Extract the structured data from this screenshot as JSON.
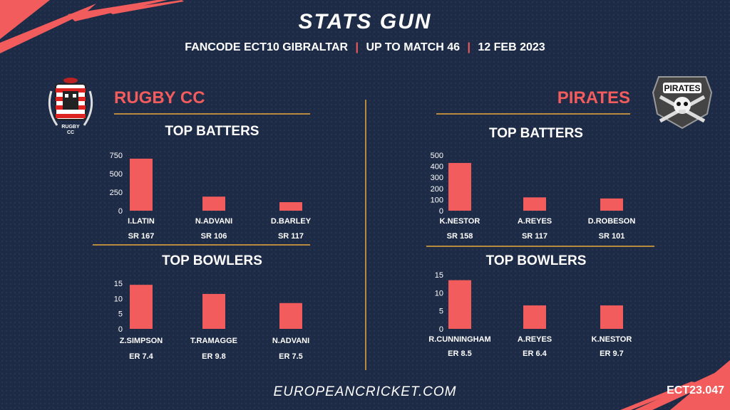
{
  "title": "STATS GUN",
  "subtitle": {
    "part1": "FANCODE ECT10 GIBRALTAR",
    "part2": "UP TO MATCH  46",
    "part3": "12 FEB 2023",
    "separator": "|"
  },
  "teams": {
    "left": {
      "name": "RUGBY CC",
      "logo_text_1": "RUGBY",
      "logo_text_2": "CC"
    },
    "right": {
      "name": "PIRATES",
      "logo_text": "PIRATES"
    }
  },
  "section_titles": {
    "batters": "TOP BATTERS",
    "bowlers": "TOP BOWLERS"
  },
  "footer": "EUROPEANCRICKET.COM",
  "code": "ECT23.047",
  "colors": {
    "accent": "#f25c5c",
    "gold": "#b88a3e",
    "background": "#1d2b46"
  },
  "chart_data": [
    {
      "id": "left-batters",
      "type": "bar",
      "title": "TOP BATTERS",
      "categories": [
        "I.LATIN",
        "N.ADVANI",
        "D.BARLEY"
      ],
      "values": [
        703,
        190,
        115
      ],
      "labels": [
        "SR 167",
        "SR 106",
        "SR 117"
      ],
      "yticks": [
        0,
        250,
        500,
        750
      ],
      "ylim": [
        0,
        750
      ]
    },
    {
      "id": "left-bowlers",
      "type": "bar",
      "title": "TOP BOWLERS",
      "categories": [
        "Z.SIMPSON",
        "T.RAMAGGE",
        "N.ADVANI"
      ],
      "values": [
        14.5,
        11.5,
        8.5
      ],
      "labels": [
        "ER 7.4",
        "ER 9.8",
        "ER 7.5"
      ],
      "yticks": [
        0,
        5,
        10,
        15
      ],
      "ylim": [
        0,
        15
      ]
    },
    {
      "id": "right-batters",
      "type": "bar",
      "title": "TOP BATTERS",
      "categories": [
        "K.NESTOR",
        "A.REYES",
        "D.ROBESON"
      ],
      "values": [
        430,
        120,
        110
      ],
      "labels": [
        "SR 158",
        "SR 117",
        "SR 101"
      ],
      "yticks": [
        0,
        100,
        200,
        300,
        400,
        500
      ],
      "ylim": [
        0,
        500
      ]
    },
    {
      "id": "right-bowlers",
      "type": "bar",
      "title": "TOP BOWLERS",
      "categories": [
        "R.CUNNINGHAM",
        "A.REYES",
        "K.NESTOR"
      ],
      "values": [
        13.5,
        6.5,
        6.5
      ],
      "labels": [
        "ER 8.5",
        "ER 6.4",
        "ER 9.7"
      ],
      "yticks": [
        0,
        5,
        10,
        15
      ],
      "ylim": [
        0,
        15
      ]
    }
  ]
}
